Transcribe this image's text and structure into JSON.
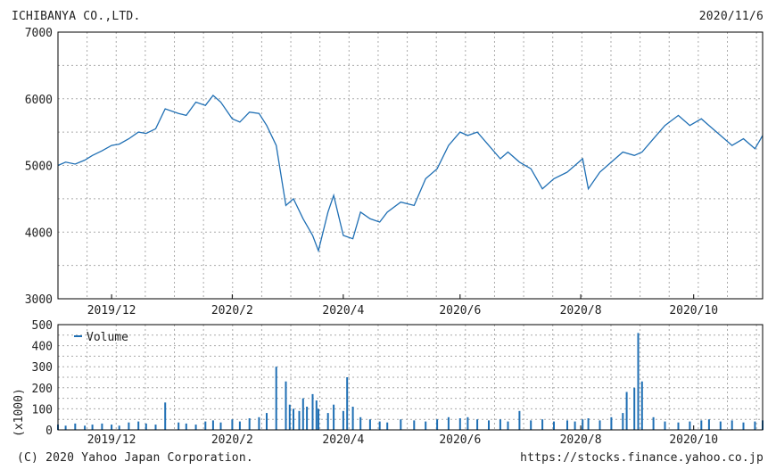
{
  "header": {
    "company": "ICHIBANYA CO.,LTD.",
    "date": "2020/11/6"
  },
  "footer": {
    "copyright": "(C) 2020 Yahoo Japan Corporation.",
    "url": "https://stocks.finance.yahoo.co.jp"
  },
  "colors": {
    "line": "#1f6fb4",
    "grid": "#aaaaaa",
    "frame": "#000000"
  },
  "chart_data": [
    {
      "type": "line",
      "name": "price",
      "ylim": [
        3000,
        7000
      ],
      "yticks": [
        3000,
        4000,
        5000,
        6000,
        7000
      ],
      "ytick_labels": [
        "3000",
        "4000",
        "5000",
        "6000",
        "7000"
      ],
      "xlim": [
        "2019-11-04",
        "2020-11-06"
      ],
      "xtick_labels": [
        {
          "label": "2019/12",
          "date": "2019-12-02"
        },
        {
          "label": "2020/2",
          "date": "2020-02-03"
        },
        {
          "label": "2020/4",
          "date": "2020-04-01"
        },
        {
          "label": "2020/6",
          "date": "2020-06-01"
        },
        {
          "label": "2020/8",
          "date": "2020-08-03"
        },
        {
          "label": "2020/10",
          "date": "2020-10-01"
        }
      ],
      "grid": true,
      "x": [
        "2019-11-04",
        "2019-11-08",
        "2019-11-13",
        "2019-11-18",
        "2019-11-22",
        "2019-11-27",
        "2019-12-02",
        "2019-12-06",
        "2019-12-11",
        "2019-12-16",
        "2019-12-20",
        "2019-12-25",
        "2019-12-30",
        "2020-01-06",
        "2020-01-10",
        "2020-01-15",
        "2020-01-20",
        "2020-01-24",
        "2020-01-28",
        "2020-02-03",
        "2020-02-07",
        "2020-02-12",
        "2020-02-17",
        "2020-02-21",
        "2020-02-26",
        "2020-03-02",
        "2020-03-06",
        "2020-03-11",
        "2020-03-16",
        "2020-03-19",
        "2020-03-24",
        "2020-03-27",
        "2020-04-01",
        "2020-04-06",
        "2020-04-10",
        "2020-04-15",
        "2020-04-20",
        "2020-04-24",
        "2020-05-01",
        "2020-05-08",
        "2020-05-14",
        "2020-05-20",
        "2020-05-26",
        "2020-06-01",
        "2020-06-05",
        "2020-06-10",
        "2020-06-16",
        "2020-06-22",
        "2020-06-26",
        "2020-07-02",
        "2020-07-08",
        "2020-07-14",
        "2020-07-20",
        "2020-07-27",
        "2020-07-31",
        "2020-08-04",
        "2020-08-07",
        "2020-08-13",
        "2020-08-19",
        "2020-08-25",
        "2020-08-31",
        "2020-09-04",
        "2020-09-10",
        "2020-09-16",
        "2020-09-23",
        "2020-09-29",
        "2020-10-05",
        "2020-10-09",
        "2020-10-15",
        "2020-10-21",
        "2020-10-27",
        "2020-11-02",
        "2020-11-06"
      ],
      "values": [
        5000,
        5050,
        5020,
        5080,
        5150,
        5220,
        5300,
        5320,
        5400,
        5500,
        5480,
        5550,
        5850,
        5780,
        5750,
        5950,
        5900,
        6050,
        5950,
        5700,
        5650,
        5800,
        5780,
        5600,
        5300,
        4400,
        4500,
        4200,
        3950,
        3720,
        4300,
        4550,
        3950,
        3900,
        4300,
        4200,
        4150,
        4300,
        4450,
        4400,
        4800,
        4950,
        5300,
        5500,
        5450,
        5500,
        5300,
        5100,
        5200,
        5050,
        4950,
        4650,
        4800,
        4900,
        5000,
        5100,
        4650,
        4900,
        5050,
        5200,
        5150,
        5200,
        5400,
        5600,
        5750,
        5600,
        5700,
        5600,
        5450,
        5300,
        5400,
        5250,
        5450
      ]
    },
    {
      "type": "bar",
      "name": "volume",
      "legend": "Volume",
      "ylabel": "(x1000)",
      "ylim": [
        0,
        500
      ],
      "yticks": [
        0,
        100,
        200,
        300,
        400,
        500
      ],
      "ytick_labels": [
        "0",
        "100",
        "200",
        "300",
        "400",
        "500"
      ],
      "xtick_labels": [
        {
          "label": "2019/12",
          "date": "2019-12-02"
        },
        {
          "label": "2020/2",
          "date": "2020-02-03"
        },
        {
          "label": "2020/4",
          "date": "2020-04-01"
        },
        {
          "label": "2020/6",
          "date": "2020-06-01"
        },
        {
          "label": "2020/8",
          "date": "2020-08-03"
        },
        {
          "label": "2020/10",
          "date": "2020-10-01"
        }
      ],
      "grid": true,
      "x": [
        "2019-11-04",
        "2019-11-08",
        "2019-11-13",
        "2019-11-18",
        "2019-11-22",
        "2019-11-27",
        "2019-12-02",
        "2019-12-06",
        "2019-12-11",
        "2019-12-16",
        "2019-12-20",
        "2019-12-25",
        "2019-12-30",
        "2020-01-06",
        "2020-01-10",
        "2020-01-15",
        "2020-01-20",
        "2020-01-24",
        "2020-01-28",
        "2020-02-03",
        "2020-02-07",
        "2020-02-12",
        "2020-02-17",
        "2020-02-21",
        "2020-02-26",
        "2020-03-02",
        "2020-03-04",
        "2020-03-06",
        "2020-03-09",
        "2020-03-11",
        "2020-03-13",
        "2020-03-16",
        "2020-03-18",
        "2020-03-19",
        "2020-03-24",
        "2020-03-27",
        "2020-04-01",
        "2020-04-03",
        "2020-04-06",
        "2020-04-10",
        "2020-04-15",
        "2020-04-20",
        "2020-04-24",
        "2020-05-01",
        "2020-05-08",
        "2020-05-14",
        "2020-05-20",
        "2020-05-26",
        "2020-06-01",
        "2020-06-05",
        "2020-06-10",
        "2020-06-16",
        "2020-06-22",
        "2020-06-26",
        "2020-07-02",
        "2020-07-08",
        "2020-07-14",
        "2020-07-20",
        "2020-07-27",
        "2020-07-31",
        "2020-08-04",
        "2020-08-07",
        "2020-08-13",
        "2020-08-19",
        "2020-08-25",
        "2020-08-27",
        "2020-08-31",
        "2020-09-02",
        "2020-09-04",
        "2020-09-10",
        "2020-09-16",
        "2020-09-23",
        "2020-09-29",
        "2020-10-05",
        "2020-10-09",
        "2020-10-15",
        "2020-10-21",
        "2020-10-27",
        "2020-11-02",
        "2020-11-06"
      ],
      "values": [
        25,
        20,
        30,
        20,
        25,
        30,
        25,
        20,
        35,
        40,
        30,
        25,
        130,
        35,
        30,
        25,
        40,
        45,
        35,
        50,
        40,
        55,
        60,
        80,
        300,
        230,
        120,
        100,
        90,
        150,
        110,
        170,
        140,
        100,
        80,
        120,
        90,
        250,
        110,
        60,
        50,
        40,
        35,
        50,
        45,
        40,
        50,
        60,
        55,
        60,
        50,
        45,
        50,
        40,
        90,
        45,
        50,
        40,
        45,
        40,
        50,
        55,
        45,
        60,
        80,
        180,
        200,
        460,
        230,
        60,
        40,
        35,
        40,
        45,
        50,
        40,
        45,
        35,
        40,
        45
      ]
    }
  ]
}
